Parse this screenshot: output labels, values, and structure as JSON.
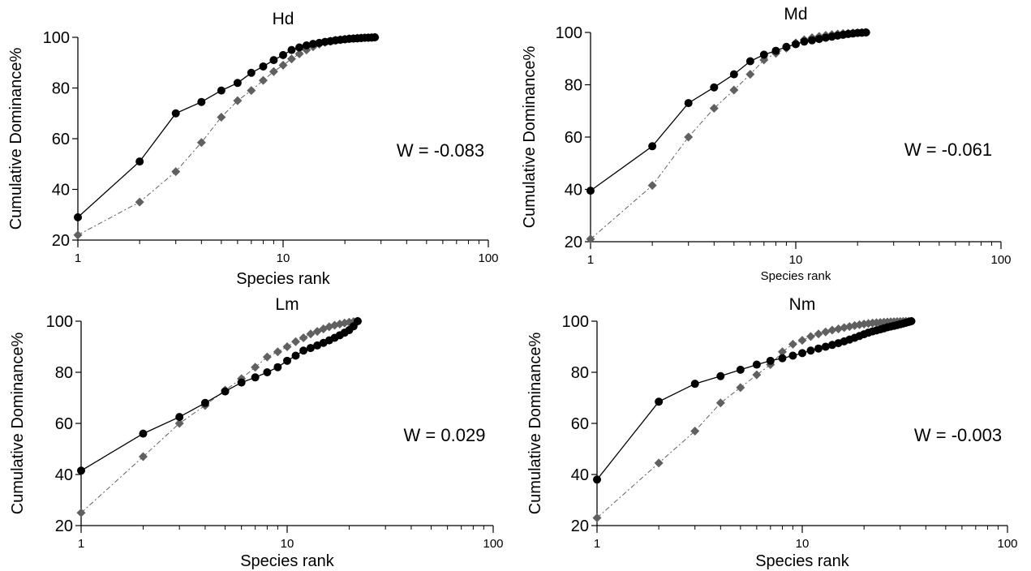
{
  "chart_data": [
    {
      "type": "line",
      "title": "Hd",
      "xlabel": "Species rank",
      "ylabel": "Cumulative Dominance%",
      "x_scale": "log",
      "xlim": [
        1,
        100
      ],
      "ylim": [
        20,
        100
      ],
      "x_ticks": [
        "1",
        "10",
        "100"
      ],
      "y_ticks": [
        "20",
        "40",
        "60",
        "80",
        "100"
      ],
      "grid": false,
      "annotation": "W = -0.083",
      "series": [
        {
          "color": "#000000",
          "marker": "circle",
          "line": "solid",
          "x": [
            1,
            2,
            3,
            4,
            5,
            6,
            7,
            8,
            9,
            10,
            11,
            12,
            13,
            14,
            15,
            16,
            17,
            18,
            19,
            20,
            21,
            22,
            23,
            24,
            25,
            26,
            27,
            28
          ],
          "y": [
            29,
            51,
            70,
            74.5,
            79,
            82,
            86,
            88.5,
            91,
            93,
            95,
            96,
            96.8,
            97.4,
            97.8,
            98.2,
            98.5,
            98.8,
            99,
            99.2,
            99.4,
            99.5,
            99.6,
            99.7,
            99.8,
            99.85,
            99.9,
            100
          ]
        },
        {
          "color": "#606060",
          "marker": "diamond",
          "line": "dashed",
          "x": [
            1,
            2,
            3,
            4,
            5,
            6,
            7,
            8,
            9,
            10,
            11,
            12,
            13,
            14,
            15,
            16,
            17,
            18,
            19,
            20,
            21,
            22,
            23,
            24,
            25,
            26,
            27,
            28
          ],
          "y": [
            22,
            35,
            47,
            58.5,
            68.5,
            75,
            79,
            83,
            86.5,
            89,
            91.5,
            93.5,
            95,
            96.3,
            97.3,
            98,
            98.5,
            98.9,
            99.1,
            99.3,
            99.5,
            99.6,
            99.7,
            99.8,
            99.85,
            99.9,
            99.95,
            100
          ]
        }
      ]
    },
    {
      "type": "line",
      "title": "Md",
      "xlabel": "Species rank",
      "ylabel": "Cumulative Dominance%",
      "x_scale": "log",
      "xlim": [
        1,
        100
      ],
      "ylim": [
        20,
        100
      ],
      "x_ticks": [
        "1",
        "10",
        "100"
      ],
      "y_ticks": [
        "20",
        "40",
        "60",
        "80",
        "100"
      ],
      "grid": false,
      "annotation": "W = -0.061",
      "series": [
        {
          "color": "#000000",
          "marker": "circle",
          "line": "solid",
          "x": [
            1,
            2,
            3,
            4,
            5,
            6,
            7,
            8,
            9,
            10,
            11,
            12,
            13,
            14,
            15,
            16,
            17,
            18,
            19,
            20,
            21,
            22
          ],
          "y": [
            39.5,
            56.5,
            73,
            79,
            84,
            89,
            91.5,
            93,
            94.5,
            95.5,
            96.5,
            97,
            97.5,
            98,
            98.4,
            98.8,
            99.1,
            99.4,
            99.6,
            99.8,
            99.9,
            100
          ]
        },
        {
          "color": "#606060",
          "marker": "diamond",
          "line": "dashed",
          "x": [
            1,
            2,
            3,
            4,
            5,
            6,
            7,
            8,
            9,
            10,
            11,
            12,
            13,
            14,
            15,
            16,
            17,
            18,
            19,
            20,
            21,
            22
          ],
          "y": [
            21,
            41.5,
            60,
            71,
            78,
            84,
            89.5,
            92,
            94,
            96,
            97.2,
            98,
            98.5,
            98.9,
            99.2,
            99.4,
            99.6,
            99.7,
            99.8,
            99.9,
            99.95,
            100
          ]
        }
      ]
    },
    {
      "type": "line",
      "title": "Lm",
      "xlabel": "Species rank",
      "ylabel": "Cumulative Dominance%",
      "x_scale": "log",
      "xlim": [
        1,
        100
      ],
      "ylim": [
        20,
        100
      ],
      "x_ticks": [
        "1",
        "10",
        "100"
      ],
      "y_ticks": [
        "20",
        "40",
        "60",
        "80",
        "100"
      ],
      "grid": false,
      "annotation": "W = 0.029",
      "series": [
        {
          "color": "#000000",
          "marker": "circle",
          "line": "solid",
          "x": [
            1,
            2,
            3,
            4,
            5,
            6,
            7,
            8,
            9,
            10,
            11,
            12,
            13,
            14,
            15,
            16,
            17,
            18,
            19,
            20,
            21,
            22
          ],
          "y": [
            41.5,
            56,
            62.5,
            68,
            72.5,
            76,
            78,
            80,
            82,
            84.5,
            86.5,
            88.5,
            89.5,
            90.5,
            91.5,
            92.5,
            93.5,
            94.5,
            95.5,
            96.5,
            98,
            100
          ]
        },
        {
          "color": "#606060",
          "marker": "diamond",
          "line": "dashed",
          "x": [
            1,
            2,
            3,
            4,
            5,
            6,
            7,
            8,
            9,
            10,
            11,
            12,
            13,
            14,
            15,
            16,
            17,
            18,
            19,
            20,
            21,
            22
          ],
          "y": [
            25,
            47,
            60,
            67,
            73,
            77.5,
            82,
            86,
            88,
            90,
            92,
            93.5,
            95,
            96,
            97,
            97.8,
            98.4,
            98.9,
            99.3,
            99.6,
            99.8,
            100
          ]
        }
      ]
    },
    {
      "type": "line",
      "title": "Nm",
      "xlabel": "Species rank",
      "ylabel": "Cumulative Dominance%",
      "x_scale": "log",
      "xlim": [
        1,
        100
      ],
      "ylim": [
        20,
        100
      ],
      "x_ticks": [
        "1",
        "10",
        "100"
      ],
      "y_ticks": [
        "20",
        "40",
        "60",
        "80",
        "100"
      ],
      "grid": false,
      "annotation": "W = -0.003",
      "series": [
        {
          "color": "#000000",
          "marker": "circle",
          "line": "solid",
          "x": [
            1,
            2,
            3,
            4,
            5,
            6,
            7,
            8,
            9,
            10,
            11,
            12,
            13,
            14,
            15,
            16,
            17,
            18,
            19,
            20,
            21,
            22,
            23,
            24,
            25,
            26,
            27,
            28,
            29,
            30,
            31,
            32,
            33,
            34
          ],
          "y": [
            38,
            68.5,
            75.5,
            78.5,
            81,
            83,
            84.5,
            85.5,
            86.5,
            87.5,
            88.5,
            89.3,
            90,
            90.7,
            91.4,
            92.1,
            92.8,
            93.5,
            94.2,
            94.9,
            95.5,
            96,
            96.4,
            96.8,
            97.2,
            97.6,
            97.9,
            98.2,
            98.5,
            98.8,
            99.1,
            99.4,
            99.7,
            100
          ]
        },
        {
          "color": "#606060",
          "marker": "diamond",
          "line": "dashed",
          "x": [
            1,
            2,
            3,
            4,
            5,
            6,
            7,
            8,
            9,
            10,
            11,
            12,
            13,
            14,
            15,
            16,
            17,
            18,
            19,
            20,
            21,
            22,
            23,
            24,
            25,
            26,
            27,
            28,
            29,
            30,
            31,
            32,
            33,
            34
          ],
          "y": [
            23,
            44.5,
            57,
            68,
            74,
            79,
            83,
            88,
            91,
            92.5,
            94,
            95,
            95.8,
            96.5,
            97,
            97.5,
            97.9,
            98.3,
            98.6,
            98.9,
            99.1,
            99.3,
            99.4,
            99.5,
            99.6,
            99.7,
            99.75,
            99.8,
            99.85,
            99.9,
            99.93,
            99.96,
            99.98,
            100
          ]
        }
      ]
    }
  ]
}
